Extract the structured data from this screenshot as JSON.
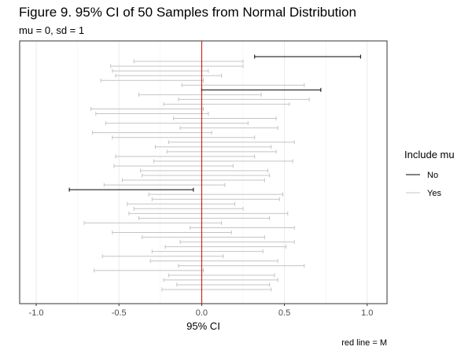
{
  "chart_data": {
    "type": "errorbar",
    "title": "Figure 9. 95% CI of 50 Samples from Normal Distribution",
    "subtitle": "mu = 0, sd = 1",
    "xlabel": "95% CI",
    "ylabel": "",
    "caption": "red line = M",
    "xlim": [
      -1.1,
      1.12
    ],
    "x_ticks": [
      -1.0,
      -0.5,
      0.0,
      0.5,
      1.0
    ],
    "x_tick_labels": [
      "-1.0",
      "-0.5",
      "0.0",
      "0.5",
      "1.0"
    ],
    "reference_line": {
      "x": 0,
      "color": "#cc0000"
    },
    "grid": true,
    "legend": {
      "title": "Include mu",
      "placement": "right",
      "items": [
        {
          "label": "No",
          "color": "#000000"
        },
        {
          "label": "Yes",
          "color": "#c4c4c4"
        }
      ]
    },
    "intervals": [
      {
        "lower": 0.32,
        "upper": 0.96,
        "include": "No"
      },
      {
        "lower": -0.41,
        "upper": 0.25,
        "include": "Yes"
      },
      {
        "lower": -0.55,
        "upper": 0.25,
        "include": "Yes"
      },
      {
        "lower": -0.54,
        "upper": 0.04,
        "include": "Yes"
      },
      {
        "lower": -0.52,
        "upper": 0.12,
        "include": "Yes"
      },
      {
        "lower": -0.61,
        "upper": 0.01,
        "include": "Yes"
      },
      {
        "lower": -0.12,
        "upper": 0.62,
        "include": "Yes"
      },
      {
        "lower": 0.0,
        "upper": 0.72,
        "include": "No"
      },
      {
        "lower": -0.38,
        "upper": 0.36,
        "include": "Yes"
      },
      {
        "lower": -0.14,
        "upper": 0.65,
        "include": "Yes"
      },
      {
        "lower": -0.23,
        "upper": 0.53,
        "include": "Yes"
      },
      {
        "lower": -0.67,
        "upper": 0.01,
        "include": "Yes"
      },
      {
        "lower": -0.64,
        "upper": 0.04,
        "include": "Yes"
      },
      {
        "lower": -0.17,
        "upper": 0.45,
        "include": "Yes"
      },
      {
        "lower": -0.58,
        "upper": 0.28,
        "include": "Yes"
      },
      {
        "lower": -0.13,
        "upper": 0.46,
        "include": "Yes"
      },
      {
        "lower": -0.66,
        "upper": 0.06,
        "include": "Yes"
      },
      {
        "lower": -0.54,
        "upper": 0.32,
        "include": "Yes"
      },
      {
        "lower": -0.2,
        "upper": 0.56,
        "include": "Yes"
      },
      {
        "lower": -0.28,
        "upper": 0.42,
        "include": "Yes"
      },
      {
        "lower": -0.21,
        "upper": 0.45,
        "include": "Yes"
      },
      {
        "lower": -0.52,
        "upper": 0.32,
        "include": "Yes"
      },
      {
        "lower": -0.29,
        "upper": 0.55,
        "include": "Yes"
      },
      {
        "lower": -0.53,
        "upper": 0.19,
        "include": "Yes"
      },
      {
        "lower": -0.37,
        "upper": 0.4,
        "include": "Yes"
      },
      {
        "lower": -0.36,
        "upper": 0.41,
        "include": "Yes"
      },
      {
        "lower": -0.48,
        "upper": 0.38,
        "include": "Yes"
      },
      {
        "lower": -0.59,
        "upper": 0.14,
        "include": "Yes"
      },
      {
        "lower": -0.8,
        "upper": -0.05,
        "include": "No"
      },
      {
        "lower": -0.32,
        "upper": 0.49,
        "include": "Yes"
      },
      {
        "lower": -0.3,
        "upper": 0.47,
        "include": "Yes"
      },
      {
        "lower": -0.45,
        "upper": 0.2,
        "include": "Yes"
      },
      {
        "lower": -0.41,
        "upper": 0.25,
        "include": "Yes"
      },
      {
        "lower": -0.44,
        "upper": 0.52,
        "include": "Yes"
      },
      {
        "lower": -0.38,
        "upper": 0.41,
        "include": "Yes"
      },
      {
        "lower": -0.71,
        "upper": 0.12,
        "include": "Yes"
      },
      {
        "lower": -0.07,
        "upper": 0.56,
        "include": "Yes"
      },
      {
        "lower": -0.54,
        "upper": 0.18,
        "include": "Yes"
      },
      {
        "lower": -0.36,
        "upper": 0.38,
        "include": "Yes"
      },
      {
        "lower": -0.13,
        "upper": 0.56,
        "include": "Yes"
      },
      {
        "lower": -0.22,
        "upper": 0.51,
        "include": "Yes"
      },
      {
        "lower": -0.3,
        "upper": 0.37,
        "include": "Yes"
      },
      {
        "lower": -0.6,
        "upper": 0.13,
        "include": "Yes"
      },
      {
        "lower": -0.31,
        "upper": 0.46,
        "include": "Yes"
      },
      {
        "lower": -0.14,
        "upper": 0.62,
        "include": "Yes"
      },
      {
        "lower": -0.65,
        "upper": 0.01,
        "include": "Yes"
      },
      {
        "lower": -0.2,
        "upper": 0.44,
        "include": "Yes"
      },
      {
        "lower": -0.23,
        "upper": 0.46,
        "include": "Yes"
      },
      {
        "lower": -0.15,
        "upper": 0.41,
        "include": "Yes"
      },
      {
        "lower": -0.24,
        "upper": 0.42,
        "include": "Yes"
      }
    ]
  }
}
